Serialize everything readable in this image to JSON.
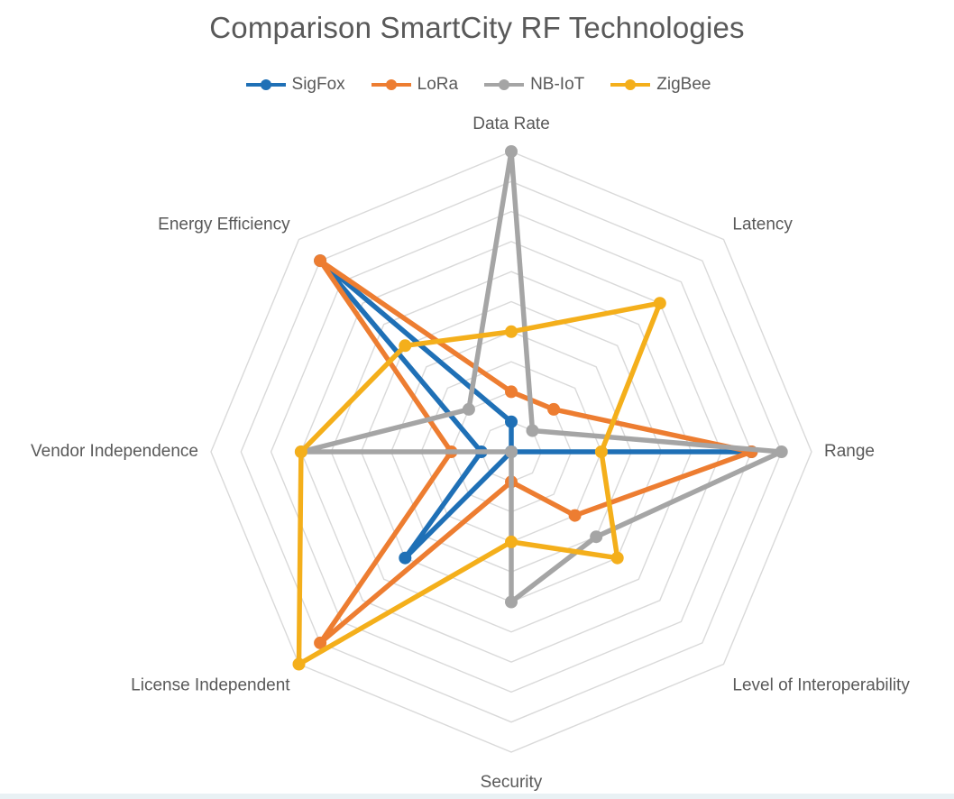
{
  "chart_data": {
    "type": "radar",
    "title": "Comparison SmartCity RF Technologies",
    "axes": [
      "Data Rate",
      "Latency",
      "Range",
      "Level of Interoperability",
      "Security",
      "License Independent",
      "Vendor Independence",
      "Energy Efficiency"
    ],
    "rlim": [
      0,
      10
    ],
    "rings": 10,
    "grid": true,
    "legend_position": "top",
    "series": [
      {
        "name": "SigFox",
        "color": "#1f70b6",
        "values": [
          1,
          0,
          8,
          0,
          0,
          5,
          1,
          9
        ]
      },
      {
        "name": "LoRa",
        "color": "#ed7d31",
        "values": [
          2,
          2,
          8,
          3,
          1,
          9,
          2,
          9
        ]
      },
      {
        "name": "NB-IoT",
        "color": "#a5a5a5",
        "values": [
          10,
          1,
          9,
          4,
          5,
          0,
          7,
          2
        ]
      },
      {
        "name": "ZigBee",
        "color": "#f4af1b",
        "values": [
          4,
          7,
          3,
          5,
          3,
          10,
          7,
          5
        ]
      }
    ]
  }
}
